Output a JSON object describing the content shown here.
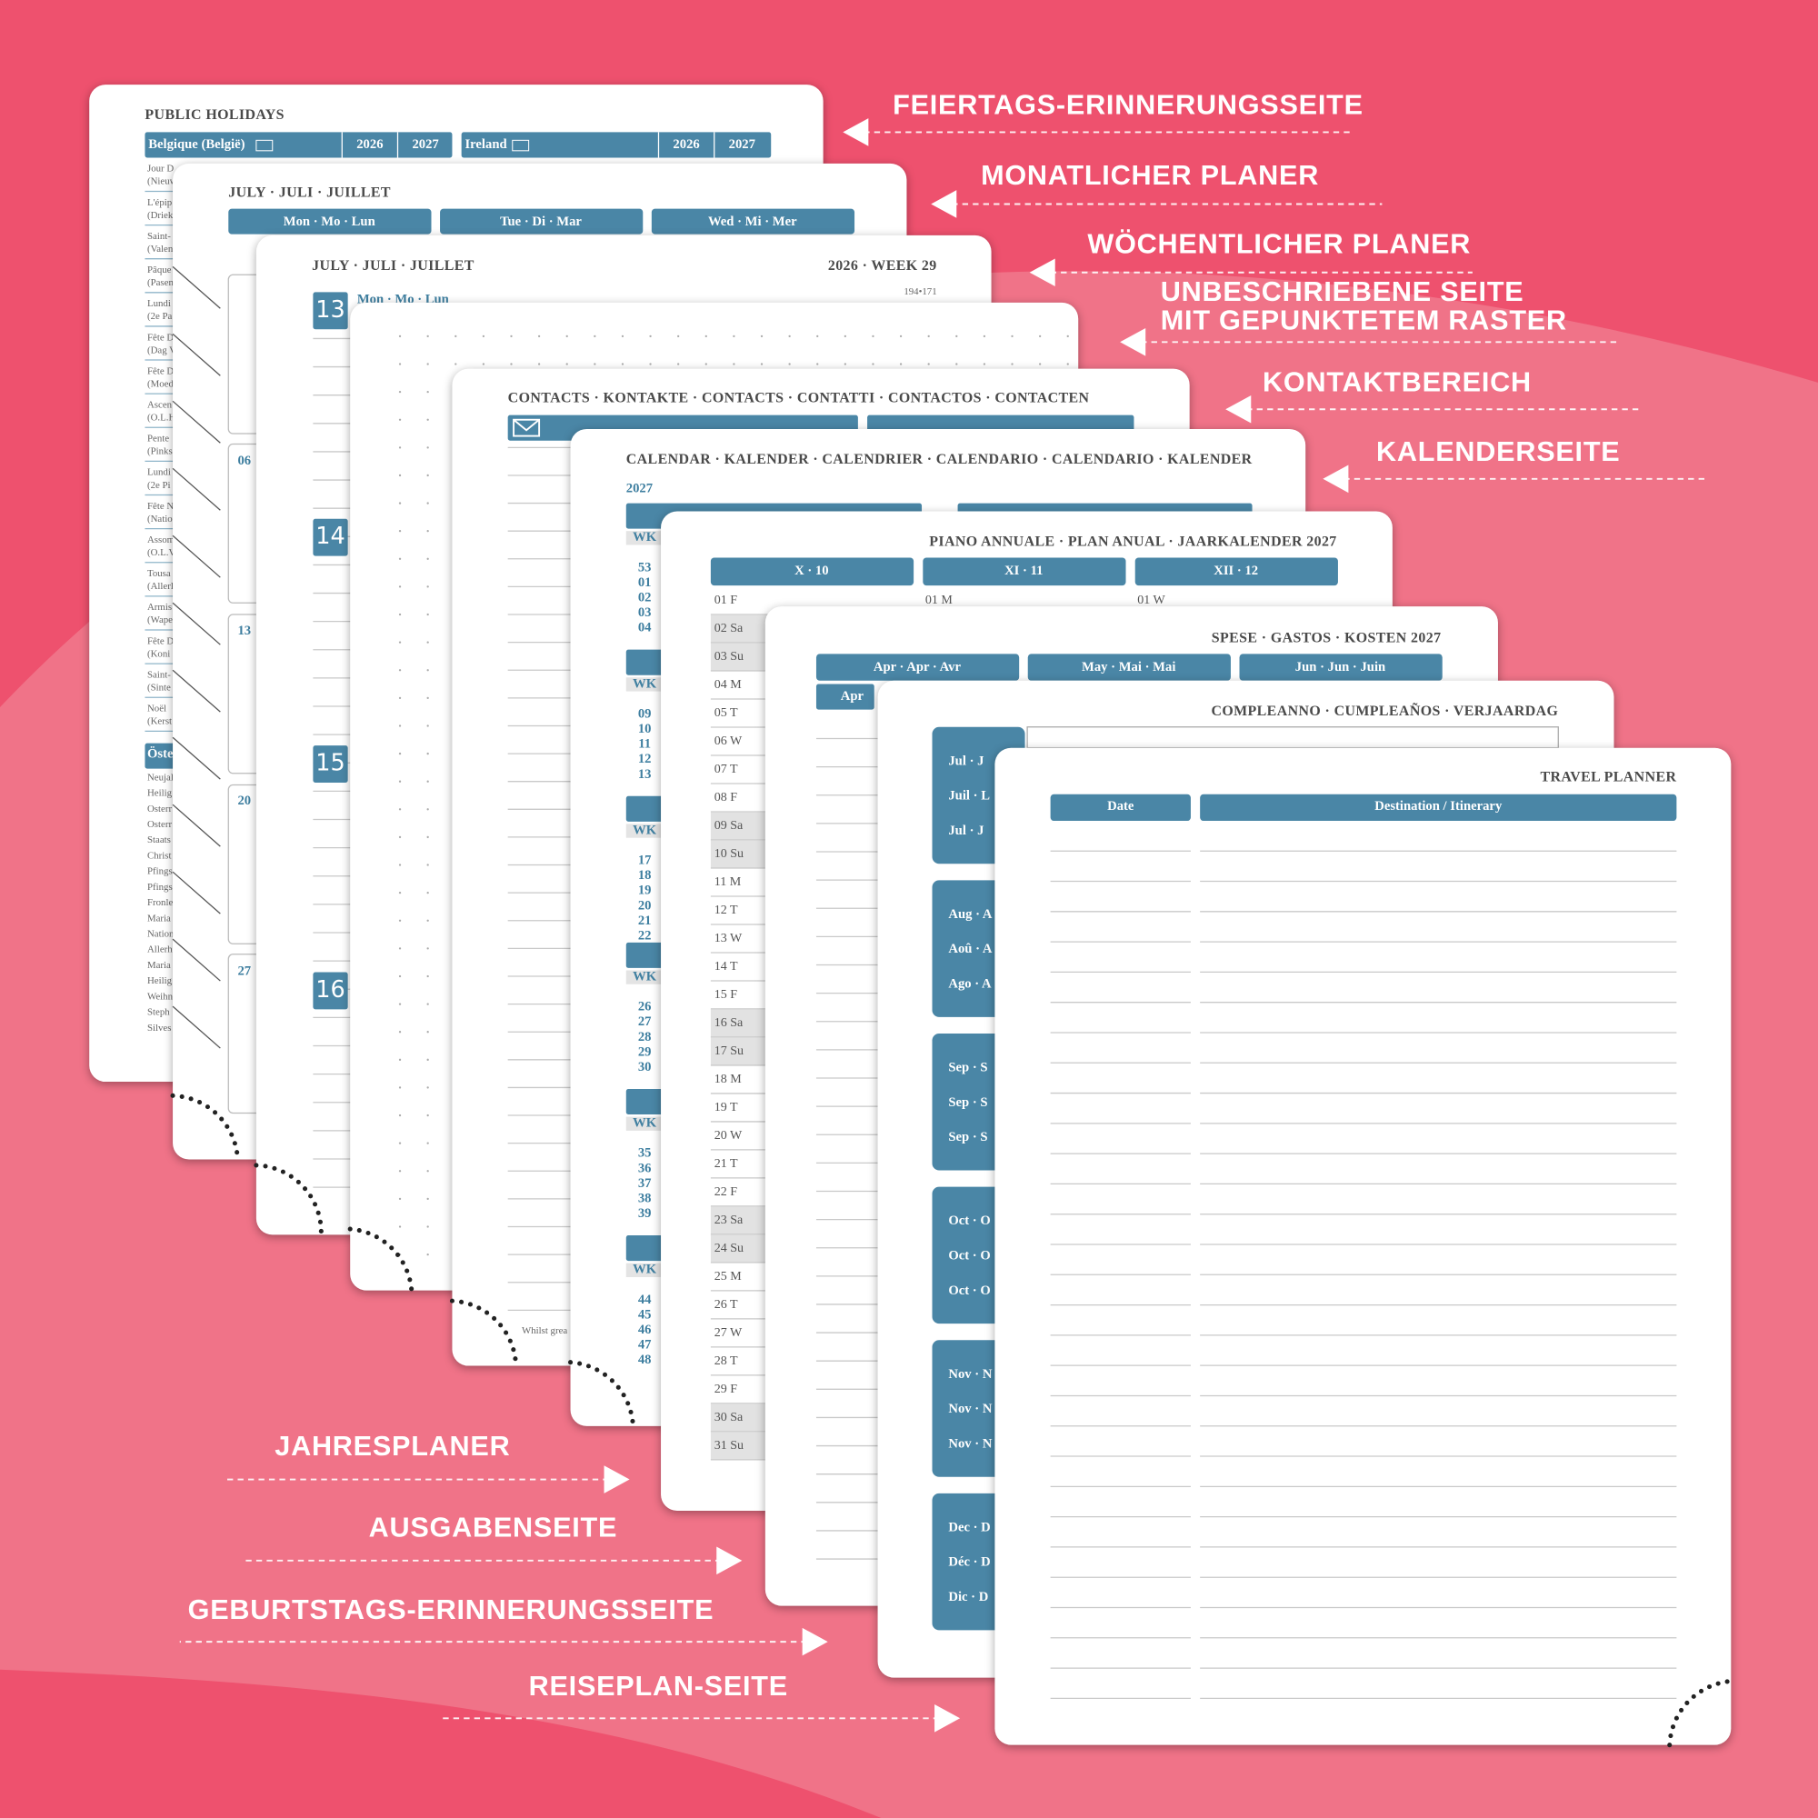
{
  "callouts": [
    {
      "lines": [
        "FEIERTAGS-ERINNERUNGSSEITE"
      ]
    },
    {
      "lines": [
        "MONATLICHER PLANER"
      ]
    },
    {
      "lines": [
        "WÖCHENTLICHER PLANER"
      ]
    },
    {
      "lines": [
        "UNBESCHRIEBENE SEITE",
        "MIT GEPUNKTETEM RASTER"
      ]
    },
    {
      "lines": [
        "KONTAKTBEREICH"
      ]
    },
    {
      "lines": [
        "KALENDERSEITE"
      ]
    },
    {
      "lines": [
        "JAHRESPLANER"
      ]
    },
    {
      "lines": [
        "AUSGABENSEITE"
      ]
    },
    {
      "lines": [
        "GEBURTSTAGS-ERINNERUNGSSEITE"
      ]
    },
    {
      "lines": [
        "REISEPLAN-SEITE"
      ]
    }
  ],
  "holidays": {
    "title": "PUBLIC HOLIDAYS",
    "columns": [
      {
        "country": "Belgique (België)",
        "years": [
          "2026",
          "2027"
        ]
      },
      {
        "country": "Ireland",
        "years": [
          "2026",
          "2027"
        ]
      }
    ],
    "entries": [
      "Jour D",
      "(Nieuw",
      "L'épip",
      "(Driek",
      "Saint-",
      "(Valen",
      "Pâque",
      "(Pasen",
      "Lundi",
      "(2e Pa",
      "Fête D",
      "(Dag V",
      "Fête D",
      "(Moed",
      "Ascen",
      "(O.L.H",
      "Pente",
      "(Pinks",
      "Lundi",
      "(2e Pi",
      "Fête N",
      "(Natio",
      "Assom",
      "(O.L.V",
      "Tousa",
      "(Allerl",
      "Armis",
      "(Wape",
      "Fête D",
      "(Koni",
      "Saint-",
      "(Sinte",
      "Noël",
      "(Kerst"
    ],
    "section": "Öste",
    "section_entries": [
      "Neujal",
      "Heilig",
      "Osterr",
      "Osterr",
      "Staats",
      "Christ",
      "Pfings",
      "Pfings",
      "Fronle",
      "Maria",
      "Nation",
      "Allerh",
      "Maria",
      "Heilig",
      "Weihn",
      "Steph",
      "Silves"
    ]
  },
  "monthly": {
    "title": "JULY · JULI · JUILLET",
    "weekdays": [
      "Mon · Mo · Lun",
      "Tue · Di · Mar",
      "Wed · Mi · Mer"
    ],
    "dates": [
      "06",
      "13",
      "20",
      "27"
    ]
  },
  "weekly": {
    "title": "JULY · JULI · JUILLET",
    "week": "2026 · WEEK 29",
    "day_count": "194•171",
    "day_header": "Mon · Mo · Lun",
    "days": [
      "13",
      "14",
      "15",
      "16"
    ]
  },
  "contacts": {
    "title": "CONTACTS · KONTAKTE · CONTACTS · CONTATTI · CONTACTOS · CONTACTEN",
    "footer": "Whilst grea"
  },
  "calendar": {
    "title": "CALENDAR · KALENDER · CALENDRIER · CALENDARIO · CALENDARIO · KALENDER",
    "year": "2027",
    "week_label": "WK",
    "week_groups": [
      [
        "53",
        "01",
        "02",
        "03",
        "04"
      ],
      [
        "09",
        "10",
        "11",
        "12",
        "13"
      ],
      [
        "17",
        "18",
        "19",
        "20",
        "21",
        "22"
      ],
      [
        "26",
        "27",
        "28",
        "29",
        "30"
      ],
      [
        "35",
        "36",
        "37",
        "38",
        "39"
      ],
      [
        "44",
        "45",
        "46",
        "47",
        "48"
      ]
    ]
  },
  "annual": {
    "title": "PIANO ANNUALE · PLAN ANUAL · JAARKALENDER 2027",
    "months": [
      "X · 10",
      "XI · 11",
      "XII · 12"
    ],
    "days": [
      "01 F",
      "02 Sa",
      "03 Su",
      "04 M",
      "05 T",
      "06 W",
      "07 T",
      "08 F",
      "09 Sa",
      "10 Su",
      "11 M",
      "12 T",
      "13 W",
      "14 T",
      "15 F",
      "16 Sa",
      "17 Su",
      "18 M",
      "19 T",
      "20 W",
      "21 T",
      "22 F",
      "23 Sa",
      "24 Su",
      "25 M",
      "26 T",
      "27 W",
      "28 T",
      "29 F",
      "30 Sa",
      "31 Su"
    ],
    "first_days": [
      "01 M",
      "01 W"
    ]
  },
  "expenses": {
    "title": "SPESE · GASTOS · KOSTEN 2027",
    "months": [
      "Apr · Apr · Avr",
      "May · Mai · Mai",
      "Jun · Jun · Juin"
    ],
    "row": "Apr"
  },
  "birthdays": {
    "title": "COMPLEANNO · CUMPLEAÑOS · VERJAARDAG",
    "months": [
      [
        "Jul · J",
        "Juil · L",
        "Jul · J"
      ],
      [
        "Aug · A",
        "Aoû · A",
        "Ago · A"
      ],
      [
        "Sep · S",
        "Sep · S",
        "Sep · S"
      ],
      [
        "Oct · O",
        "Oct · O",
        "Oct · O"
      ],
      [
        "Nov · N",
        "Nov · N",
        "Nov · N"
      ],
      [
        "Dec · D",
        "Déc · D",
        "Dic · D"
      ]
    ]
  },
  "travel": {
    "title": "TRAVEL PLANNER",
    "columns": [
      "Date",
      "Destination / Itinerary"
    ]
  }
}
